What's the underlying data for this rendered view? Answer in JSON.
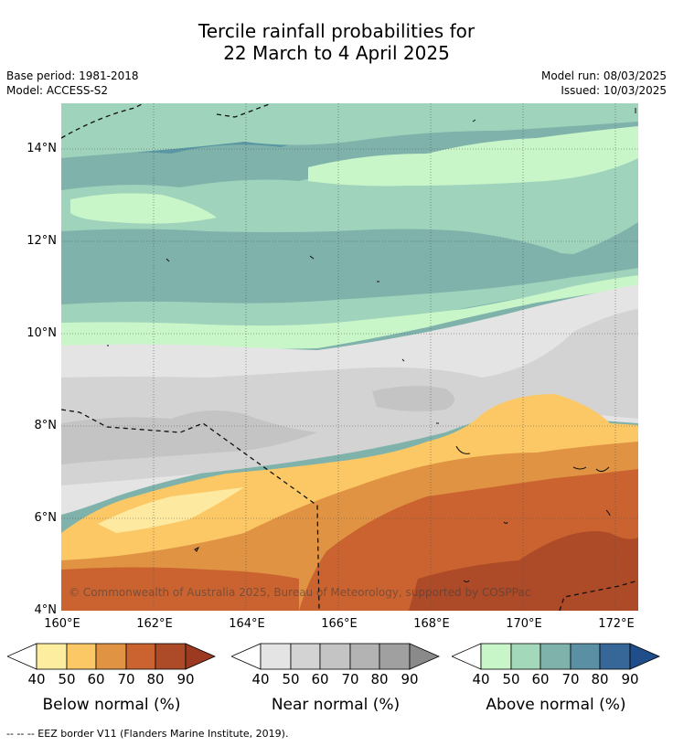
{
  "title_line1": "Tercile rainfall probabilities for",
  "title_line2": "22 March to 4 April 2025",
  "meta": {
    "base_period": "Base period: 1981-2018",
    "model": "Model: ACCESS-S2",
    "model_run": "Model run: 08/03/2025",
    "issued": "Issued: 10/03/2025"
  },
  "map": {
    "y_ticks": [
      "14°N",
      "12°N",
      "10°N",
      "8°N",
      "6°N",
      "4°N"
    ],
    "x_ticks": [
      "160°E",
      "162°E",
      "164°E",
      "166°E",
      "168°E",
      "170°E",
      "172°E"
    ],
    "copyright": "© Commonwealth of Australia 2025, Bureau of Meteorology, supported by COSPPac",
    "colors": {
      "above_70_80": "#5a96a3",
      "above_60_70": "#7fb2ab",
      "above_50_60": "#9fd3bb",
      "above_40_50": "#c8f6c8",
      "near_40_50": "#e4e4e4",
      "near_50_60": "#d3d3d3",
      "near_60_70": "#c4c4c4",
      "below_40_50": "#fde9a0",
      "below_50_60": "#fcc866",
      "below_60_70": "#e09443",
      "below_70_80": "#ca6330",
      "below_80_90": "#ad4b28"
    }
  },
  "legends": [
    {
      "title": "Below normal (%)",
      "ticks": [
        "40",
        "50",
        "60",
        "70",
        "80",
        "90"
      ],
      "low_color": "#ffffff",
      "colors": [
        "#fdee9f",
        "#fcc866",
        "#e09443",
        "#ca6330",
        "#ad4b28"
      ],
      "high_color": "#9b3a20"
    },
    {
      "title": "Near normal (%)",
      "ticks": [
        "40",
        "50",
        "60",
        "70",
        "80",
        "90"
      ],
      "low_color": "#ffffff",
      "colors": [
        "#e4e4e4",
        "#d3d3d3",
        "#c4c4c4",
        "#b3b3b3",
        "#a0a0a0"
      ],
      "high_color": "#8a8a8a"
    },
    {
      "title": "Above normal (%)",
      "ticks": [
        "40",
        "50",
        "60",
        "70",
        "80",
        "90"
      ],
      "low_color": "#ffffff",
      "colors": [
        "#c8f6c8",
        "#a3d8bb",
        "#7fb2ab",
        "#5b8fa3",
        "#376698"
      ],
      "high_color": "#1f4e8a"
    }
  ],
  "footnote": "--  --  -- EEZ border V11 (Flanders Marine Institute, 2019)."
}
